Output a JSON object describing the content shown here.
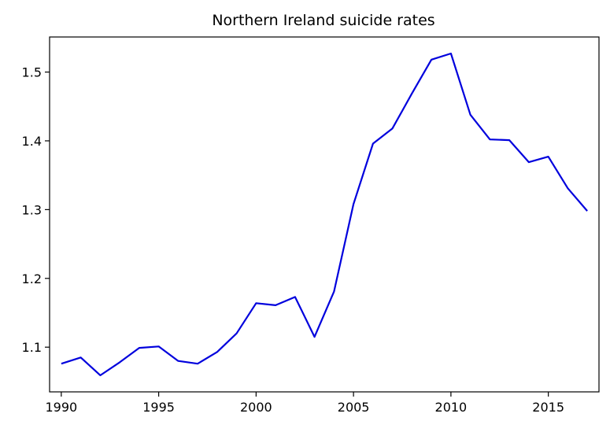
{
  "chart_data": {
    "type": "line",
    "title": "Northern Ireland suicide rates",
    "xlabel": "",
    "ylabel": "",
    "xlim": [
      1989.4,
      2017.6
    ],
    "ylim": [
      1.035,
      1.551
    ],
    "x_ticks": [
      1990,
      1995,
      2000,
      2005,
      2010,
      2015
    ],
    "y_ticks": [
      1.1,
      1.2,
      1.3,
      1.4,
      1.5
    ],
    "y_tick_labels": [
      "1.1",
      "1.2",
      "1.3",
      "1.4",
      "1.5"
    ],
    "grid": false,
    "legend": "none",
    "series": [
      {
        "color": "#0000dd",
        "x": [
          1990,
          1991,
          1992,
          1993,
          1994,
          1995,
          1996,
          1997,
          1998,
          1999,
          2000,
          2001,
          2002,
          2003,
          2004,
          2005,
          2006,
          2007,
          2008,
          2009,
          2010,
          2011,
          2012,
          2013,
          2014,
          2015,
          2016,
          2017
        ],
        "y": [
          1.076,
          1.085,
          1.059,
          1.078,
          1.099,
          1.101,
          1.08,
          1.076,
          1.093,
          1.12,
          1.164,
          1.161,
          1.173,
          1.115,
          1.181,
          1.308,
          1.396,
          1.418,
          1.469,
          1.518,
          1.527,
          1.438,
          1.402,
          1.401,
          1.369,
          1.377,
          1.331,
          1.298
        ]
      }
    ]
  }
}
